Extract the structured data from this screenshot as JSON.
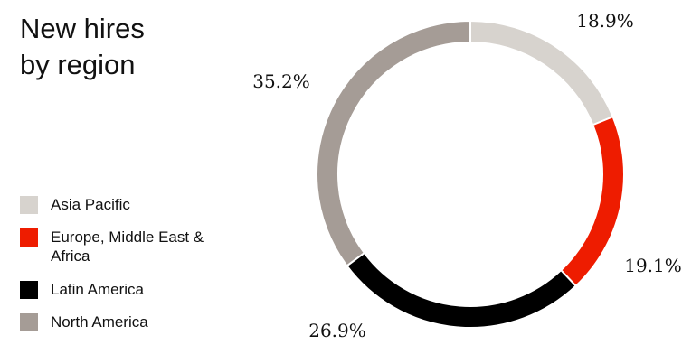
{
  "title_lines": [
    "New hires",
    "by region"
  ],
  "chart_data": {
    "type": "pie",
    "title": "New hires by region",
    "categories": [
      "Asia Pacific",
      "Europe, Middle East & Africa",
      "Latin America",
      "North America"
    ],
    "values": [
      18.9,
      19.1,
      26.9,
      35.2
    ],
    "labels": [
      "18.9%",
      "19.1%",
      "26.9%",
      "35.2%"
    ],
    "unit": "%",
    "colors": [
      "#d7d3ce",
      "#ee1c00",
      "#000000",
      "#a59c96"
    ],
    "legend_position": "left"
  },
  "legend": [
    {
      "label": "Asia Pacific",
      "color": "#d7d3ce"
    },
    {
      "label": "Europe, Middle East & Africa",
      "color": "#ee1c00"
    },
    {
      "label": "Latin America",
      "color": "#000000"
    },
    {
      "label": "North America",
      "color": "#a59c96"
    }
  ]
}
